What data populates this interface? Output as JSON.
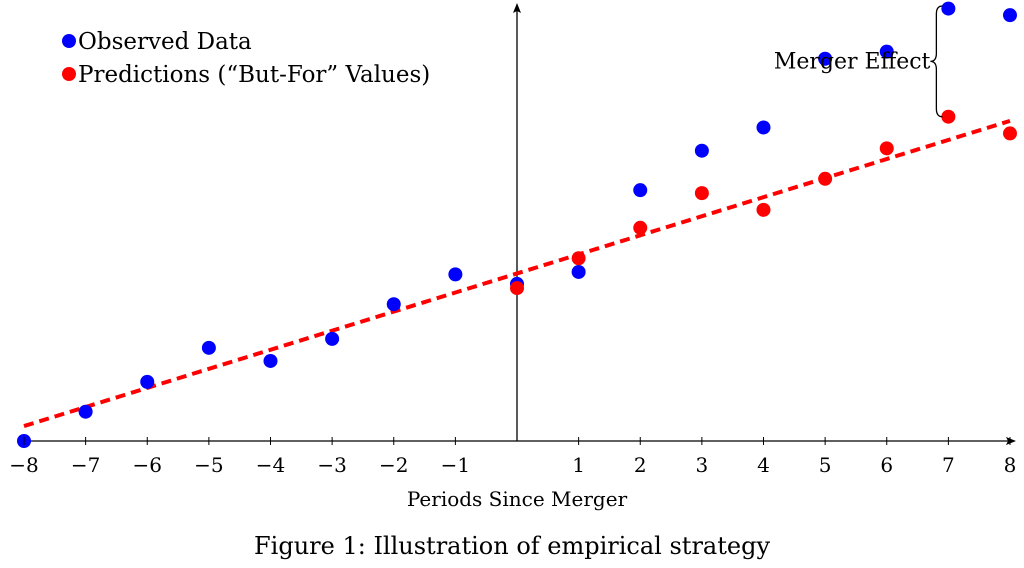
{
  "chart_data": {
    "type": "scatter",
    "xlabel": "Periods Since Merger",
    "xlim": [
      -8,
      8
    ],
    "ylim": [
      0,
      7.3
    ],
    "x_ticks": [
      -8,
      -7,
      -6,
      -5,
      -4,
      -3,
      -2,
      -1,
      1,
      2,
      3,
      4,
      5,
      6,
      7,
      8
    ],
    "x_tick_labels": [
      "−8",
      "−7",
      "−6",
      "−5",
      "−4",
      "−3",
      "−2",
      "−1",
      "1",
      "2",
      "3",
      "4",
      "5",
      "6",
      "7",
      "8"
    ],
    "grid": false,
    "legend_position": "top-left",
    "series": [
      {
        "name": "Observed Data",
        "color": "#0000ff",
        "marker": "circle",
        "x": [
          -8,
          -7,
          -6,
          -5,
          -4,
          -3,
          -2,
          -1,
          0,
          1,
          2,
          3,
          4,
          5,
          6,
          7,
          8
        ],
        "y": [
          0.0,
          0.49,
          0.99,
          1.56,
          1.34,
          1.71,
          2.29,
          2.79,
          2.63,
          2.83,
          4.2,
          4.86,
          5.25,
          6.4,
          6.52,
          7.24,
          7.13
        ]
      },
      {
        "name": "Predictions (“But-For” Values)",
        "color": "#ff0000",
        "marker": "circle",
        "x": [
          0,
          1,
          2,
          3,
          4,
          5,
          6,
          7,
          8
        ],
        "y": [
          2.56,
          3.06,
          3.57,
          4.15,
          3.87,
          4.39,
          4.9,
          5.43,
          5.15
        ]
      }
    ],
    "trend_line": {
      "style": "dashed",
      "color": "#ff0000",
      "x": [
        -8,
        8
      ],
      "y": [
        0.25,
        5.36
      ]
    },
    "annotations": [
      {
        "text": "Merger Effect",
        "type": "brace",
        "x": 7,
        "y_from": 5.43,
        "y_to": 7.3
      }
    ],
    "caption": "Figure 1: Illustration of empirical strategy"
  }
}
